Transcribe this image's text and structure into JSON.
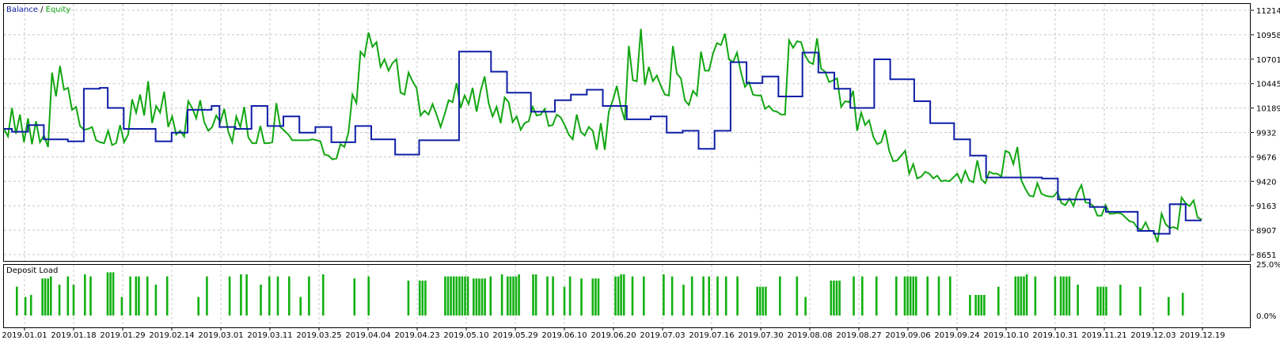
{
  "colors": {
    "balance": "#0f1fa6",
    "equity": "#12a612",
    "load": "#12b012",
    "grid": "#c8c8c8",
    "frame": "#000000"
  },
  "chart_data": [
    {
      "type": "line",
      "legend": {
        "balance": "Balance",
        "separator": "/",
        "equity": "Equity"
      },
      "legend_position": "top-left",
      "grid": true,
      "y_ticks": [
        "11214",
        "10958",
        "10701",
        "10445",
        "10189",
        "9932",
        "9676",
        "9420",
        "9163",
        "8907",
        "8651"
      ],
      "ylim": [
        8651,
        11214
      ],
      "series": [
        {
          "name": "Balance",
          "values": [
            9970,
            9940,
            9940,
            10010,
            10010,
            9860,
            9860,
            9860,
            9840,
            9840,
            10390,
            10390,
            10400,
            10190,
            10190,
            9970,
            9970,
            9970,
            9970,
            9840,
            9840,
            9930,
            9930,
            10170,
            10170,
            10170,
            10210,
            9990,
            9990,
            9970,
            9970,
            10210,
            10210,
            10000,
            10000,
            10100,
            10100,
            9930,
            9930,
            9990,
            9990,
            9830,
            9830,
            9830,
            10000,
            10000,
            9860,
            9860,
            9860,
            9700,
            9700,
            9700,
            9850,
            9850,
            9850,
            9850,
            9850,
            10780,
            10780,
            10780,
            10780,
            10570,
            10570,
            10350,
            10350,
            10350,
            10150,
            10150,
            10150,
            10270,
            10270,
            10330,
            10330,
            10380,
            10380,
            10210,
            10210,
            10210,
            10070,
            10070,
            10070,
            10100,
            10100,
            9930,
            9930,
            9950,
            9950,
            9760,
            9760,
            9950,
            9950,
            10670,
            10670,
            10450,
            10450,
            10520,
            10520,
            10310,
            10310,
            10310,
            10770,
            10770,
            10560,
            10560,
            10390,
            10390,
            10190,
            10190,
            10190,
            10700,
            10700,
            10490,
            10490,
            10490,
            10260,
            10260,
            10030,
            10030,
            10030,
            9860,
            9860,
            9690,
            9690,
            9460,
            9460,
            9460,
            9460,
            9460,
            9460,
            9460,
            9450,
            9450,
            9230,
            9230,
            9230,
            9230,
            9150,
            9150,
            9100,
            9100,
            9100,
            9100,
            8900,
            8900,
            8870,
            8870,
            9180,
            9180,
            9010,
            9010,
            9010
          ]
        },
        {
          "name": "Equity",
          "values": [
            9970,
            9890,
            10190,
            9920,
            10120,
            9830,
            10080,
            9810,
            10050,
            9830,
            9900,
            9780,
            10560,
            10310,
            10630,
            10380,
            10400,
            10170,
            10200,
            10000,
            9960,
            9970,
            9990,
            9850,
            9830,
            9820,
            9950,
            9800,
            9820,
            10010,
            9830,
            9910,
            10280,
            10140,
            10330,
            10110,
            10470,
            10030,
            10210,
            10140,
            10360,
            9990,
            10100,
            9910,
            9950,
            9890,
            10260,
            10190,
            10080,
            10270,
            10040,
            9950,
            9990,
            10110,
            10040,
            10180,
            9940,
            9830,
            10100,
            9990,
            10200,
            9880,
            9820,
            9820,
            10000,
            9820,
            9820,
            9830,
            10240,
            9990,
            9950,
            9910,
            9850,
            9850,
            9850,
            9850,
            9850,
            9860,
            9850,
            9840,
            9700,
            9690,
            9650,
            9660,
            9810,
            9780,
            9930,
            10330,
            10240,
            10780,
            10730,
            10980,
            10830,
            10880,
            10620,
            10700,
            10580,
            10660,
            10700,
            10350,
            10330,
            10560,
            10470,
            10400,
            10110,
            10160,
            10120,
            10230,
            10120,
            9990,
            10120,
            10270,
            10250,
            10450,
            10190,
            10320,
            10230,
            10400,
            10150,
            10370,
            10520,
            10240,
            10100,
            10200,
            10030,
            10300,
            10250,
            10040,
            10100,
            9960,
            10030,
            10050,
            10200,
            10110,
            10120,
            10180,
            10000,
            10010,
            10120,
            10090,
            10010,
            9910,
            9860,
            10120,
            9940,
            9900,
            9990,
            9950,
            9750,
            10030,
            9750,
            10150,
            10270,
            10420,
            10200,
            10060,
            10840,
            10480,
            10470,
            11020,
            10430,
            10620,
            10470,
            10530,
            10420,
            10330,
            10320,
            10840,
            10550,
            10500,
            10270,
            10220,
            10370,
            10320,
            10780,
            10580,
            10580,
            10760,
            10870,
            10850,
            10970,
            10700,
            10670,
            10770,
            10560,
            10410,
            10460,
            10330,
            10320,
            10320,
            10180,
            10210,
            10160,
            10150,
            10120,
            10120,
            10900,
            10820,
            10890,
            10880,
            10740,
            10670,
            10650,
            10920,
            10600,
            10570,
            10460,
            10480,
            10500,
            10200,
            10260,
            10250,
            10370,
            9950,
            10140,
            10010,
            10060,
            9890,
            9810,
            9830,
            9960,
            9740,
            9630,
            9640,
            9690,
            9740,
            9500,
            9600,
            9450,
            9470,
            9520,
            9500,
            9450,
            9480,
            9420,
            9430,
            9420,
            9460,
            9500,
            9410,
            9530,
            9430,
            9410,
            9640,
            9440,
            9400,
            9520,
            9500,
            9500,
            9470,
            9740,
            9720,
            9600,
            9780,
            9430,
            9340,
            9270,
            9260,
            9400,
            9290,
            9270,
            9260,
            9260,
            9310,
            9190,
            9170,
            9240,
            9160,
            9300,
            9380,
            9200,
            9190,
            9160,
            9060,
            9060,
            9170,
            9080,
            9080,
            9090,
            9080,
            9040,
            9000,
            8990,
            8930,
            8910,
            8990,
            8900,
            8900,
            8780,
            9080,
            8970,
            8930,
            8940,
            8920,
            9250,
            9190,
            9160,
            9220,
            9040,
            9020
          ]
        }
      ]
    },
    {
      "type": "bar",
      "title": "Deposit Load",
      "y_ticks": [
        "25.0%",
        "0.0%"
      ],
      "ylim": [
        0,
        25
      ],
      "values": [
        14,
        0,
        0,
        9,
        0,
        10,
        0,
        0,
        0,
        18,
        18,
        18,
        19,
        0,
        0,
        15,
        0,
        0,
        19,
        0,
        15,
        0,
        0,
        0,
        20,
        0,
        19,
        0,
        0,
        0,
        0,
        0,
        21,
        21,
        21,
        0,
        0,
        9,
        0,
        0,
        19,
        0,
        19,
        19,
        0,
        0,
        19,
        0,
        0,
        15,
        0,
        0,
        0,
        19,
        0,
        0,
        0,
        0,
        0,
        0,
        0,
        0,
        0,
        0,
        9,
        0,
        0,
        19,
        0,
        0,
        0,
        0,
        0,
        0,
        0,
        19,
        0,
        0,
        0,
        20,
        0,
        20,
        0,
        0,
        0,
        0,
        15,
        0,
        0,
        19,
        0,
        0,
        19,
        0,
        0,
        0,
        19,
        0,
        0,
        0,
        9,
        0,
        0,
        19,
        0,
        0,
        0,
        0,
        20,
        0,
        0,
        0,
        0,
        0,
        0,
        0,
        0,
        0,
        0,
        18,
        0,
        0,
        0,
        0,
        19,
        0,
        0,
        0,
        0,
        0,
        0,
        0,
        0,
        0,
        0,
        0,
        0,
        0,
        17,
        0,
        0,
        0,
        17,
        17,
        17,
        0,
        0,
        0,
        0,
        0,
        0,
        19,
        19,
        19,
        19,
        19,
        19,
        19,
        19,
        19,
        0,
        18,
        18,
        18,
        18,
        18,
        0,
        19,
        0,
        0,
        0,
        20,
        0,
        19,
        19,
        19,
        19,
        20,
        0,
        0,
        0,
        0,
        20,
        20,
        0,
        0,
        0,
        19,
        0,
        19,
        0,
        0,
        0,
        14,
        0,
        19,
        0,
        0,
        0,
        18,
        0,
        0,
        0,
        18,
        18,
        18,
        0,
        0,
        0,
        0,
        0,
        19,
        19,
        20,
        20,
        0,
        0,
        19,
        0,
        0,
        0,
        19,
        0,
        0,
        0,
        0,
        0,
        0,
        20,
        0,
        0,
        19,
        0,
        0,
        0,
        15,
        0,
        0,
        19,
        0,
        0,
        0,
        19,
        0,
        19,
        0,
        0,
        19,
        0,
        0,
        19,
        0,
        0,
        0,
        19,
        0,
        0,
        0,
        0,
        0,
        0,
        14,
        14,
        14,
        14,
        0,
        0,
        0,
        0,
        19,
        0,
        0,
        0,
        0,
        0,
        19,
        0,
        0,
        9,
        0,
        0,
        0,
        0,
        0,
        0,
        0,
        0,
        17,
        17,
        17,
        17,
        0,
        0,
        0,
        0,
        19,
        0,
        0,
        19,
        0,
        0,
        0,
        0,
        19,
        0,
        0,
        0,
        0,
        0,
        0,
        19,
        0,
        0,
        19,
        19,
        19,
        19,
        19,
        0,
        0,
        0,
        19,
        0,
        0,
        0,
        19,
        0,
        0,
        0,
        19,
        0,
        0,
        0,
        0,
        0,
        0,
        10,
        0,
        10,
        10,
        10,
        10,
        0,
        0,
        0,
        0,
        14,
        0,
        0,
        0,
        0,
        0,
        19,
        19,
        19,
        19,
        20,
        0,
        0,
        19,
        0,
        0,
        0,
        0,
        0,
        0,
        19,
        0,
        19,
        19,
        19,
        19,
        0,
        0,
        15,
        0,
        0,
        0,
        0,
        0,
        0,
        14,
        14,
        14,
        14,
        0,
        0,
        0,
        0,
        15,
        0,
        0,
        0,
        0,
        0,
        0,
        14,
        0,
        0,
        0,
        0,
        0,
        0,
        0,
        0,
        0,
        9,
        0,
        0,
        0,
        0,
        11,
        0,
        0,
        0,
        0,
        0,
        0
      ]
    }
  ],
  "x_ticks": [
    "2019.01.01",
    "2019.01.18",
    "2019.01.29",
    "2019.02.14",
    "2019.03.01",
    "2019.03.11",
    "2019.03.25",
    "2019.04.04",
    "2019.04.23",
    "2019.05.10",
    "2019.05.29",
    "2019.06.10",
    "2019.06.20",
    "2019.07.03",
    "2019.07.16",
    "2019.07.30",
    "2019.08.08",
    "2019.08.27",
    "2019.09.06",
    "2019.09.24",
    "2019.10.10",
    "2019.10.31",
    "2019.11.21",
    "2019.12.03",
    "2019.12.19"
  ]
}
